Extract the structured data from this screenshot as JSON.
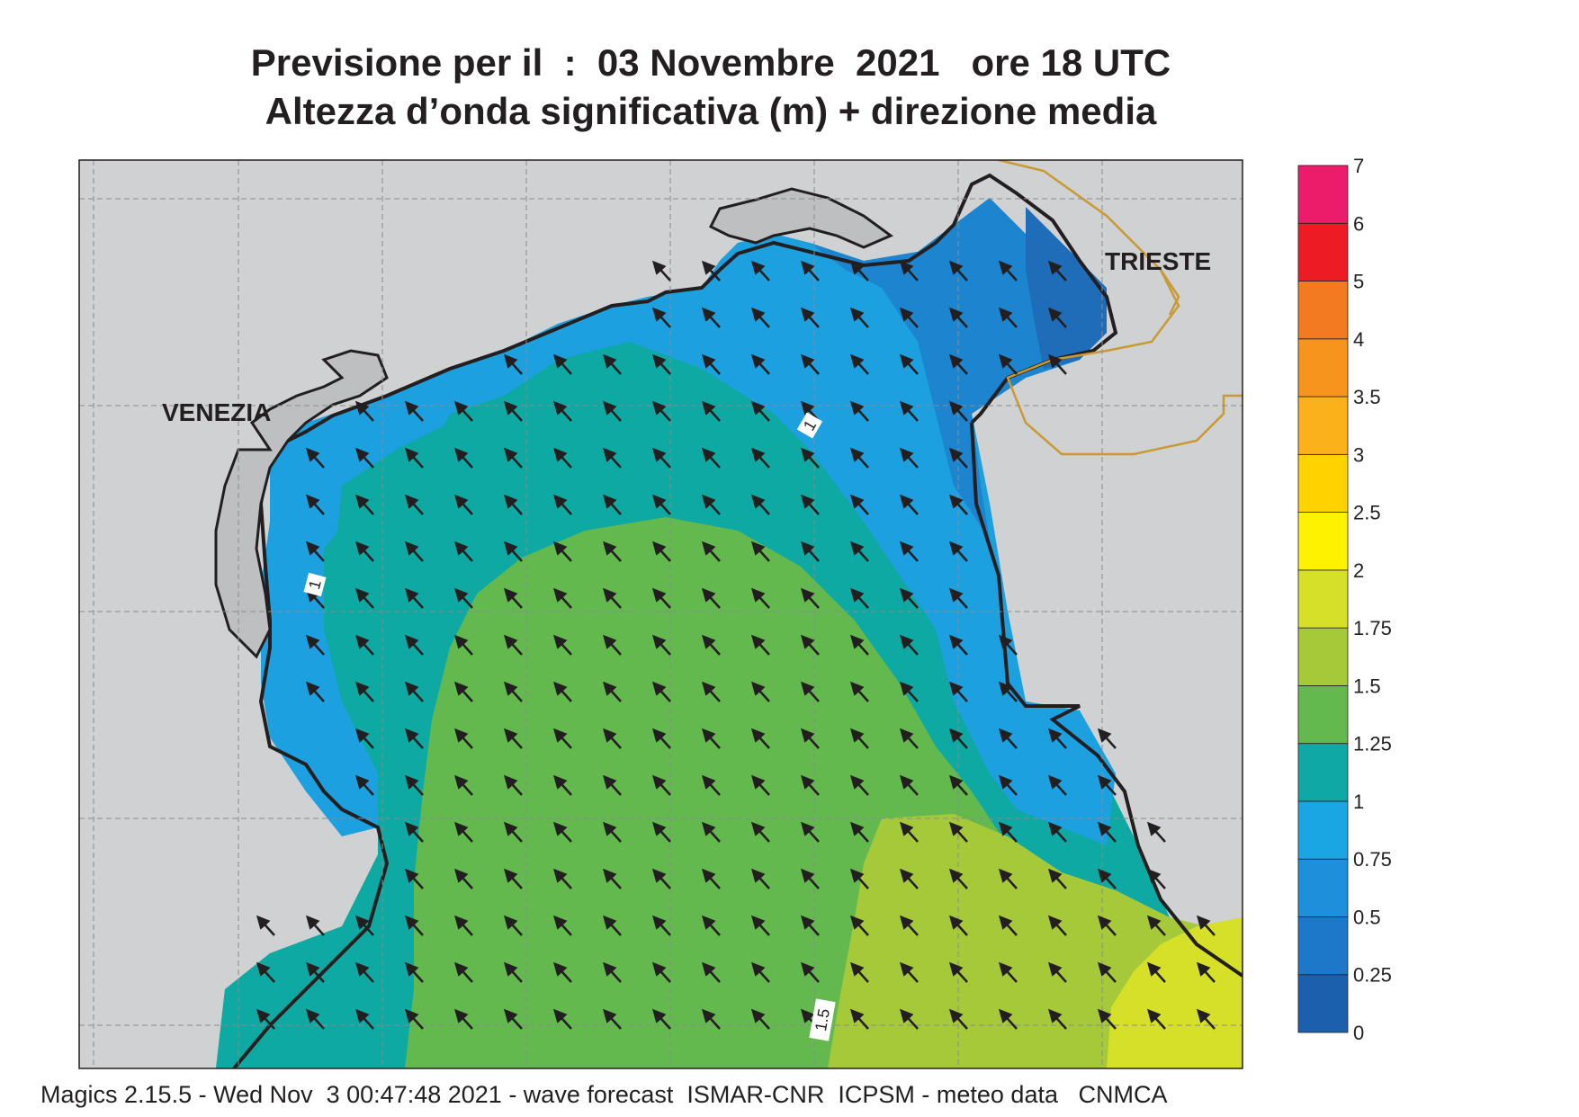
{
  "title_line1": "Previsione per il  :  03 Novembre  2021   ore 18 UTC",
  "title_line2": "Altezza d’onda significativa (m) + direzione media",
  "cities": {
    "venezia": "VENEZIA",
    "trieste": "TRIESTE"
  },
  "contour_labels": [
    "1",
    "1",
    "1.5"
  ],
  "colorbar": {
    "ticks": [
      "0",
      "0.25",
      "0.5",
      "0.75",
      "1",
      "1.25",
      "1.5",
      "1.75",
      "2",
      "2.5",
      "3",
      "3.5",
      "4",
      "5",
      "6",
      "7"
    ],
    "colors": [
      "#1b5fad",
      "#1d78c9",
      "#1d8fdb",
      "#1aa6e3",
      "#10a8a5",
      "#63b94d",
      "#a6c93a",
      "#d6e028",
      "#fff200",
      "#ffd200",
      "#fbb21a",
      "#f7941d",
      "#f47a22",
      "#ed1c24",
      "#ec1c6a"
    ]
  },
  "map_colors": {
    "land": "#cfd1d2",
    "band_025": "#1f6db8",
    "band_05": "#1d84d0",
    "band_075": "#1ca0e0",
    "band_1": "#0fa9a3",
    "band_125": "#63b94d",
    "band_15": "#a6c93a",
    "band_175": "#d6e028",
    "border": "#c99a33"
  },
  "footer": "Magics 2.15.5 - Wed Nov  3 00:47:48 2021 - wave forecast  ISMAR-CNR  ICPSM - meteo data   CNMCA"
}
